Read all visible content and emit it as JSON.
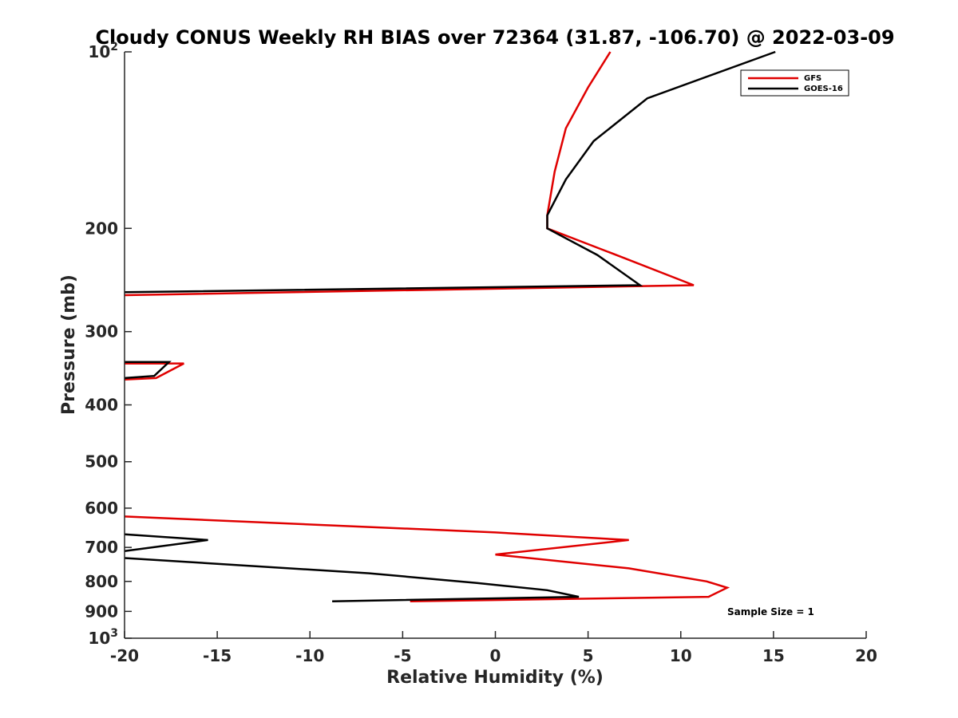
{
  "chart_data": {
    "type": "line",
    "title": "Cloudy CONUS Weekly RH BIAS over 72364 (31.87, -106.70) @ 2022-03-09",
    "xlabel": "Relative Humidity (%)",
    "ylabel": "Pressure (mb)",
    "xlim": [
      -20,
      20
    ],
    "ylim": [
      100,
      1000
    ],
    "y_scale": "log",
    "y_reversed": true,
    "x_ticks": [
      "-20",
      "-15",
      "-10",
      "-5",
      "0",
      "5",
      "10",
      "15",
      "20"
    ],
    "y_ticks": [
      {
        "value": 100,
        "base": "10",
        "exp": "2"
      },
      {
        "value": 200,
        "label": "200"
      },
      {
        "value": 300,
        "label": "300"
      },
      {
        "value": 400,
        "label": "400"
      },
      {
        "value": 500,
        "label": "500"
      },
      {
        "value": 600,
        "label": "600"
      },
      {
        "value": 700,
        "label": "700"
      },
      {
        "value": 800,
        "label": "800"
      },
      {
        "value": 900,
        "label": "900"
      },
      {
        "value": 1000,
        "base": "10",
        "exp": "3"
      }
    ],
    "grid": false,
    "legend_position": "top-right",
    "series": [
      {
        "name": "GFS",
        "color": "#e00000",
        "segments": [
          [
            [
              6.2,
              100
            ],
            [
              5.0,
              115
            ],
            [
              3.8,
              135
            ],
            [
              3.2,
              160
            ],
            [
              2.8,
              190
            ],
            [
              2.8,
              200
            ],
            [
              7.0,
              225
            ],
            [
              10.7,
              250
            ],
            [
              -20,
              260
            ]
          ],
          [
            [
              -20,
              340
            ],
            [
              -16.8,
              340
            ],
            [
              -18.3,
              360
            ],
            [
              -20,
              362
            ]
          ],
          [
            [
              -20,
              620
            ],
            [
              0,
              660
            ],
            [
              7.2,
              680
            ],
            [
              0,
              720
            ],
            [
              7.2,
              760
            ],
            [
              11.4,
              800
            ],
            [
              12.5,
              820
            ],
            [
              11.5,
              850
            ],
            [
              -4.6,
              865
            ]
          ]
        ]
      },
      {
        "name": "GOES-16",
        "color": "#000000",
        "segments": [
          [
            [
              15.1,
              100
            ],
            [
              8.2,
              120
            ],
            [
              5.3,
              142
            ],
            [
              3.8,
              165
            ],
            [
              2.8,
              190
            ],
            [
              2.8,
              200
            ],
            [
              5.5,
              222
            ],
            [
              7.8,
              250
            ],
            [
              -20,
              257
            ]
          ],
          [
            [
              -20,
              338
            ],
            [
              -17.6,
              338
            ],
            [
              -18.4,
              357
            ],
            [
              -20,
              360
            ]
          ],
          [
            [
              -20,
              665
            ],
            [
              -15.5,
              680
            ],
            [
              -20,
              710
            ]
          ],
          [
            [
              -20,
              730
            ],
            [
              -6.8,
              775
            ],
            [
              -1.0,
              805
            ],
            [
              2.8,
              828
            ],
            [
              4.5,
              850
            ],
            [
              -8.8,
              865
            ]
          ]
        ]
      }
    ],
    "annotation": "Sample Size = 1"
  }
}
